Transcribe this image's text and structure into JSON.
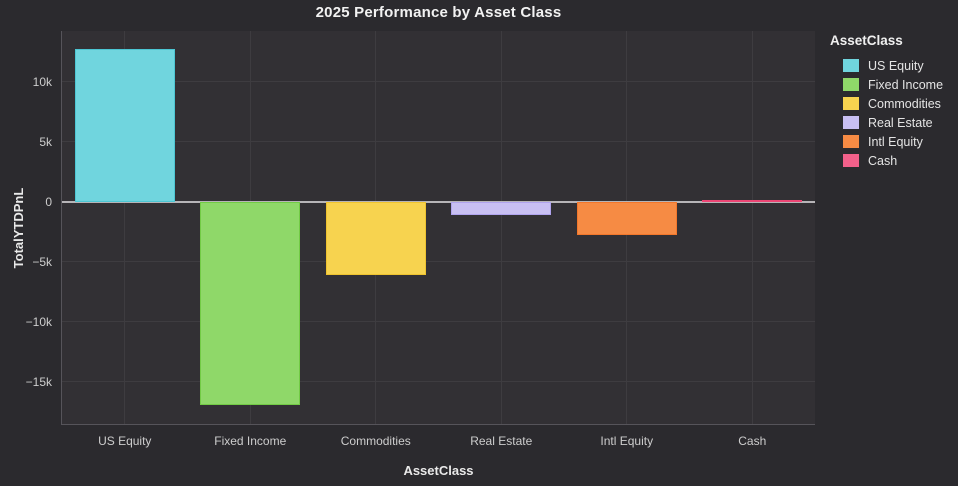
{
  "title": "2025 Performance by Asset Class",
  "theme": {
    "background": "#2b2a2e",
    "plot_background": "#323034",
    "grid_color": "#3e3c40",
    "zero_line_color": "#b7b5b8",
    "axis_line_color": "#56545a",
    "tick_label_color": "#cdcdcd",
    "axis_title_color": "#e9e9e9",
    "title_color": "#f2f2f2"
  },
  "chart_data": {
    "type": "bar",
    "title": "2025 Performance by Asset Class",
    "xlabel": "AssetClass",
    "ylabel": "TotalYTDPnL",
    "categories": [
      "US Equity",
      "Fixed Income",
      "Commodities",
      "Real Estate",
      "Intl Equity",
      "Cash"
    ],
    "values": [
      12750,
      -16950,
      -6100,
      -1100,
      -2750,
      150
    ],
    "bar_colors": [
      "#70d5de",
      "#8fd869",
      "#f7d34f",
      "#c8bff2",
      "#f68b44",
      "#f2608a"
    ],
    "bar_border_colors": [
      "#4cc6d3",
      "#72cb45",
      "#efc32f",
      "#b0a3ee",
      "#f3772b",
      "#ec4574"
    ],
    "ylim": [
      -18600,
      14250
    ],
    "yticks": [
      {
        "value": 10000,
        "label": "10k"
      },
      {
        "value": 5000,
        "label": "5k"
      },
      {
        "value": 0,
        "label": "0"
      },
      {
        "value": -5000,
        "label": "−5k"
      },
      {
        "value": -10000,
        "label": "−10k"
      },
      {
        "value": -15000,
        "label": "−15k"
      }
    ],
    "grid": true,
    "legend": {
      "title": "AssetClass",
      "position": "right",
      "entries": [
        {
          "label": "US Equity",
          "color": "#70d5de"
        },
        {
          "label": "Fixed Income",
          "color": "#8fd869"
        },
        {
          "label": "Commodities",
          "color": "#f7d34f"
        },
        {
          "label": "Real Estate",
          "color": "#c8bff2"
        },
        {
          "label": "Intl Equity",
          "color": "#f68b44"
        },
        {
          "label": "Cash",
          "color": "#f2608a"
        }
      ]
    }
  }
}
